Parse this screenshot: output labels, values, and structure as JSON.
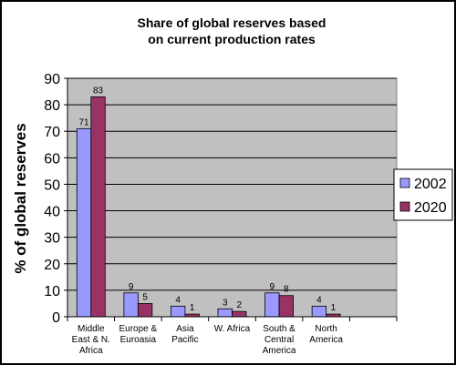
{
  "chart_data": {
    "type": "bar",
    "title_lines": [
      "Share of global reserves based",
      "on current production rates"
    ],
    "ylabel": "% of global reserves",
    "xlabel": "",
    "ylim": [
      0,
      90
    ],
    "ytick_step": 10,
    "grid": true,
    "legend_position": "right",
    "categories": [
      [
        "Middle",
        "East & N.",
        "Africa"
      ],
      [
        "Europe &",
        "Euroasia"
      ],
      [
        "Asia",
        "Pacific"
      ],
      [
        "W. Africa"
      ],
      [
        "South &",
        "Central",
        "America"
      ],
      [
        "North",
        "America"
      ],
      []
    ],
    "series": [
      {
        "name": "2002",
        "color": "#9999ff",
        "values": [
          71,
          9,
          4,
          3,
          9,
          4,
          null
        ]
      },
      {
        "name": "2020",
        "color": "#993366",
        "values": [
          83,
          5,
          1,
          2,
          8,
          1,
          null
        ]
      }
    ],
    "plot_background": "#c0c0c0"
  }
}
